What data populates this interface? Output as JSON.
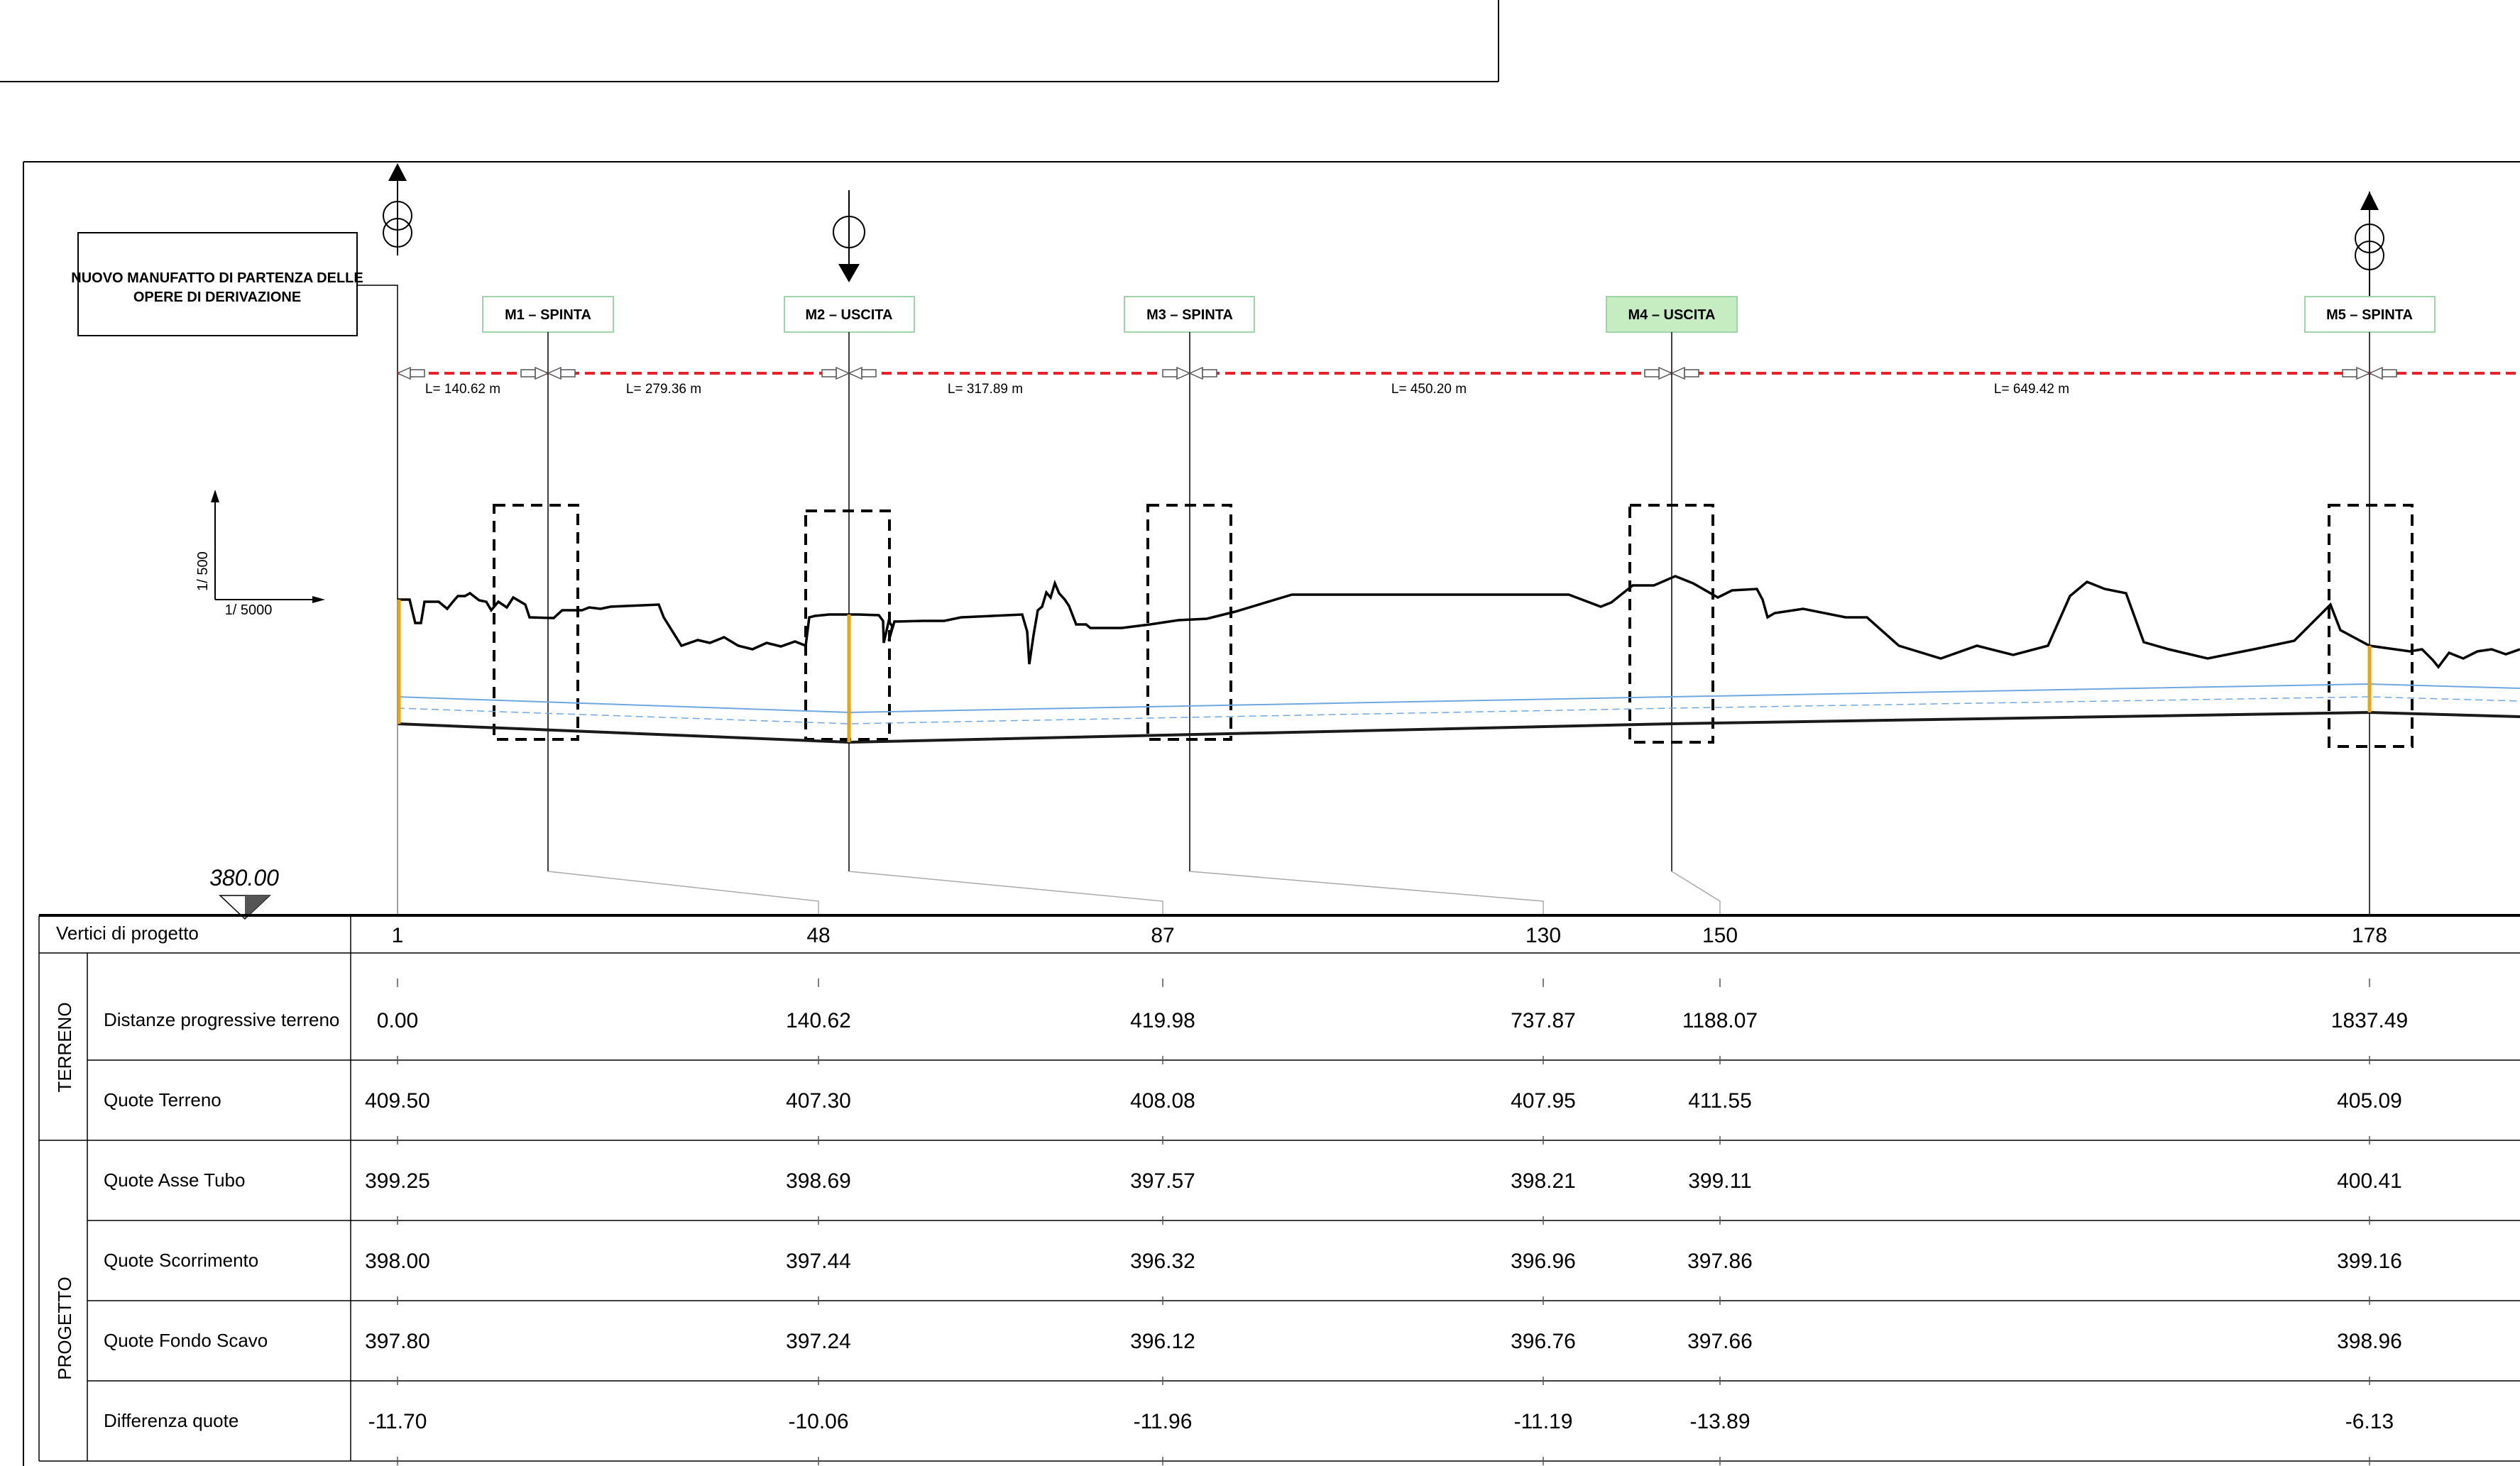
{
  "intro_box": {
    "text": "NUOVO MANUFATTO DI PARTENZA DELLE\nOPERE DI DERIVAZIONE"
  },
  "scale": {
    "vertical": "1/ 500",
    "horizontal": "1/  5000"
  },
  "datum": {
    "value": "380.00"
  },
  "manholes": [
    {
      "id": "M1",
      "label": "M1 – SPINTA",
      "type": "spinta",
      "highlight": false
    },
    {
      "id": "M2",
      "label": "M2 – USCITA",
      "type": "uscita",
      "highlight": false
    },
    {
      "id": "M3",
      "label": "M3 – SPINTA",
      "type": "spinta",
      "highlight": false
    },
    {
      "id": "M4",
      "label": "M4 – USCITA",
      "type": "uscita",
      "highlight": true
    },
    {
      "id": "M5",
      "label": "M5 – SPINTA",
      "type": "spinta",
      "highlight": false
    }
  ],
  "lengths": [
    "L= 140.62  m",
    "L= 279.36  m",
    "L= 317.89  m",
    "L= 450.20  m",
    "L= 649.42  m"
  ],
  "table": {
    "vertex_header": "Vertici di progetto",
    "group_terreno": "TERRENO",
    "group_progetto": "PROGETTO",
    "vertices": [
      "1",
      "48",
      "87",
      "130",
      "150",
      "178"
    ],
    "rows": [
      {
        "label": "Distanze progressive terreno",
        "values": [
          "0.00",
          "140.62",
          "419.98",
          "737.87",
          "1188.07",
          "1837.49"
        ]
      },
      {
        "label": "Quote Terreno",
        "values": [
          "409.50",
          "407.30",
          "408.08",
          "407.95",
          "411.55",
          "405.09"
        ]
      },
      {
        "label": "Quote Asse Tubo",
        "values": [
          "399.25",
          "398.69",
          "397.57",
          "398.21",
          "399.11",
          "400.41"
        ]
      },
      {
        "label": "Quote Scorrimento",
        "values": [
          "398.00",
          "397.44",
          "396.32",
          "396.96",
          "397.86",
          "399.16"
        ]
      },
      {
        "label": "Quote Fondo Scavo",
        "values": [
          "397.80",
          "397.24",
          "396.12",
          "396.76",
          "397.66",
          "398.96"
        ]
      },
      {
        "label": "Differenza quote",
        "values": [
          "-11.70",
          "-10.06",
          "-11.96",
          "-11.19",
          "-13.89",
          "-6.13"
        ]
      }
    ]
  },
  "colors": {
    "line": "#000000",
    "pipe_route": "#e8202a",
    "axis_blue": "#6fa8e0",
    "marker_orange": "#e8a317",
    "highlight_fill": "#c6ecc2",
    "label_border": "#9fd4a8"
  }
}
